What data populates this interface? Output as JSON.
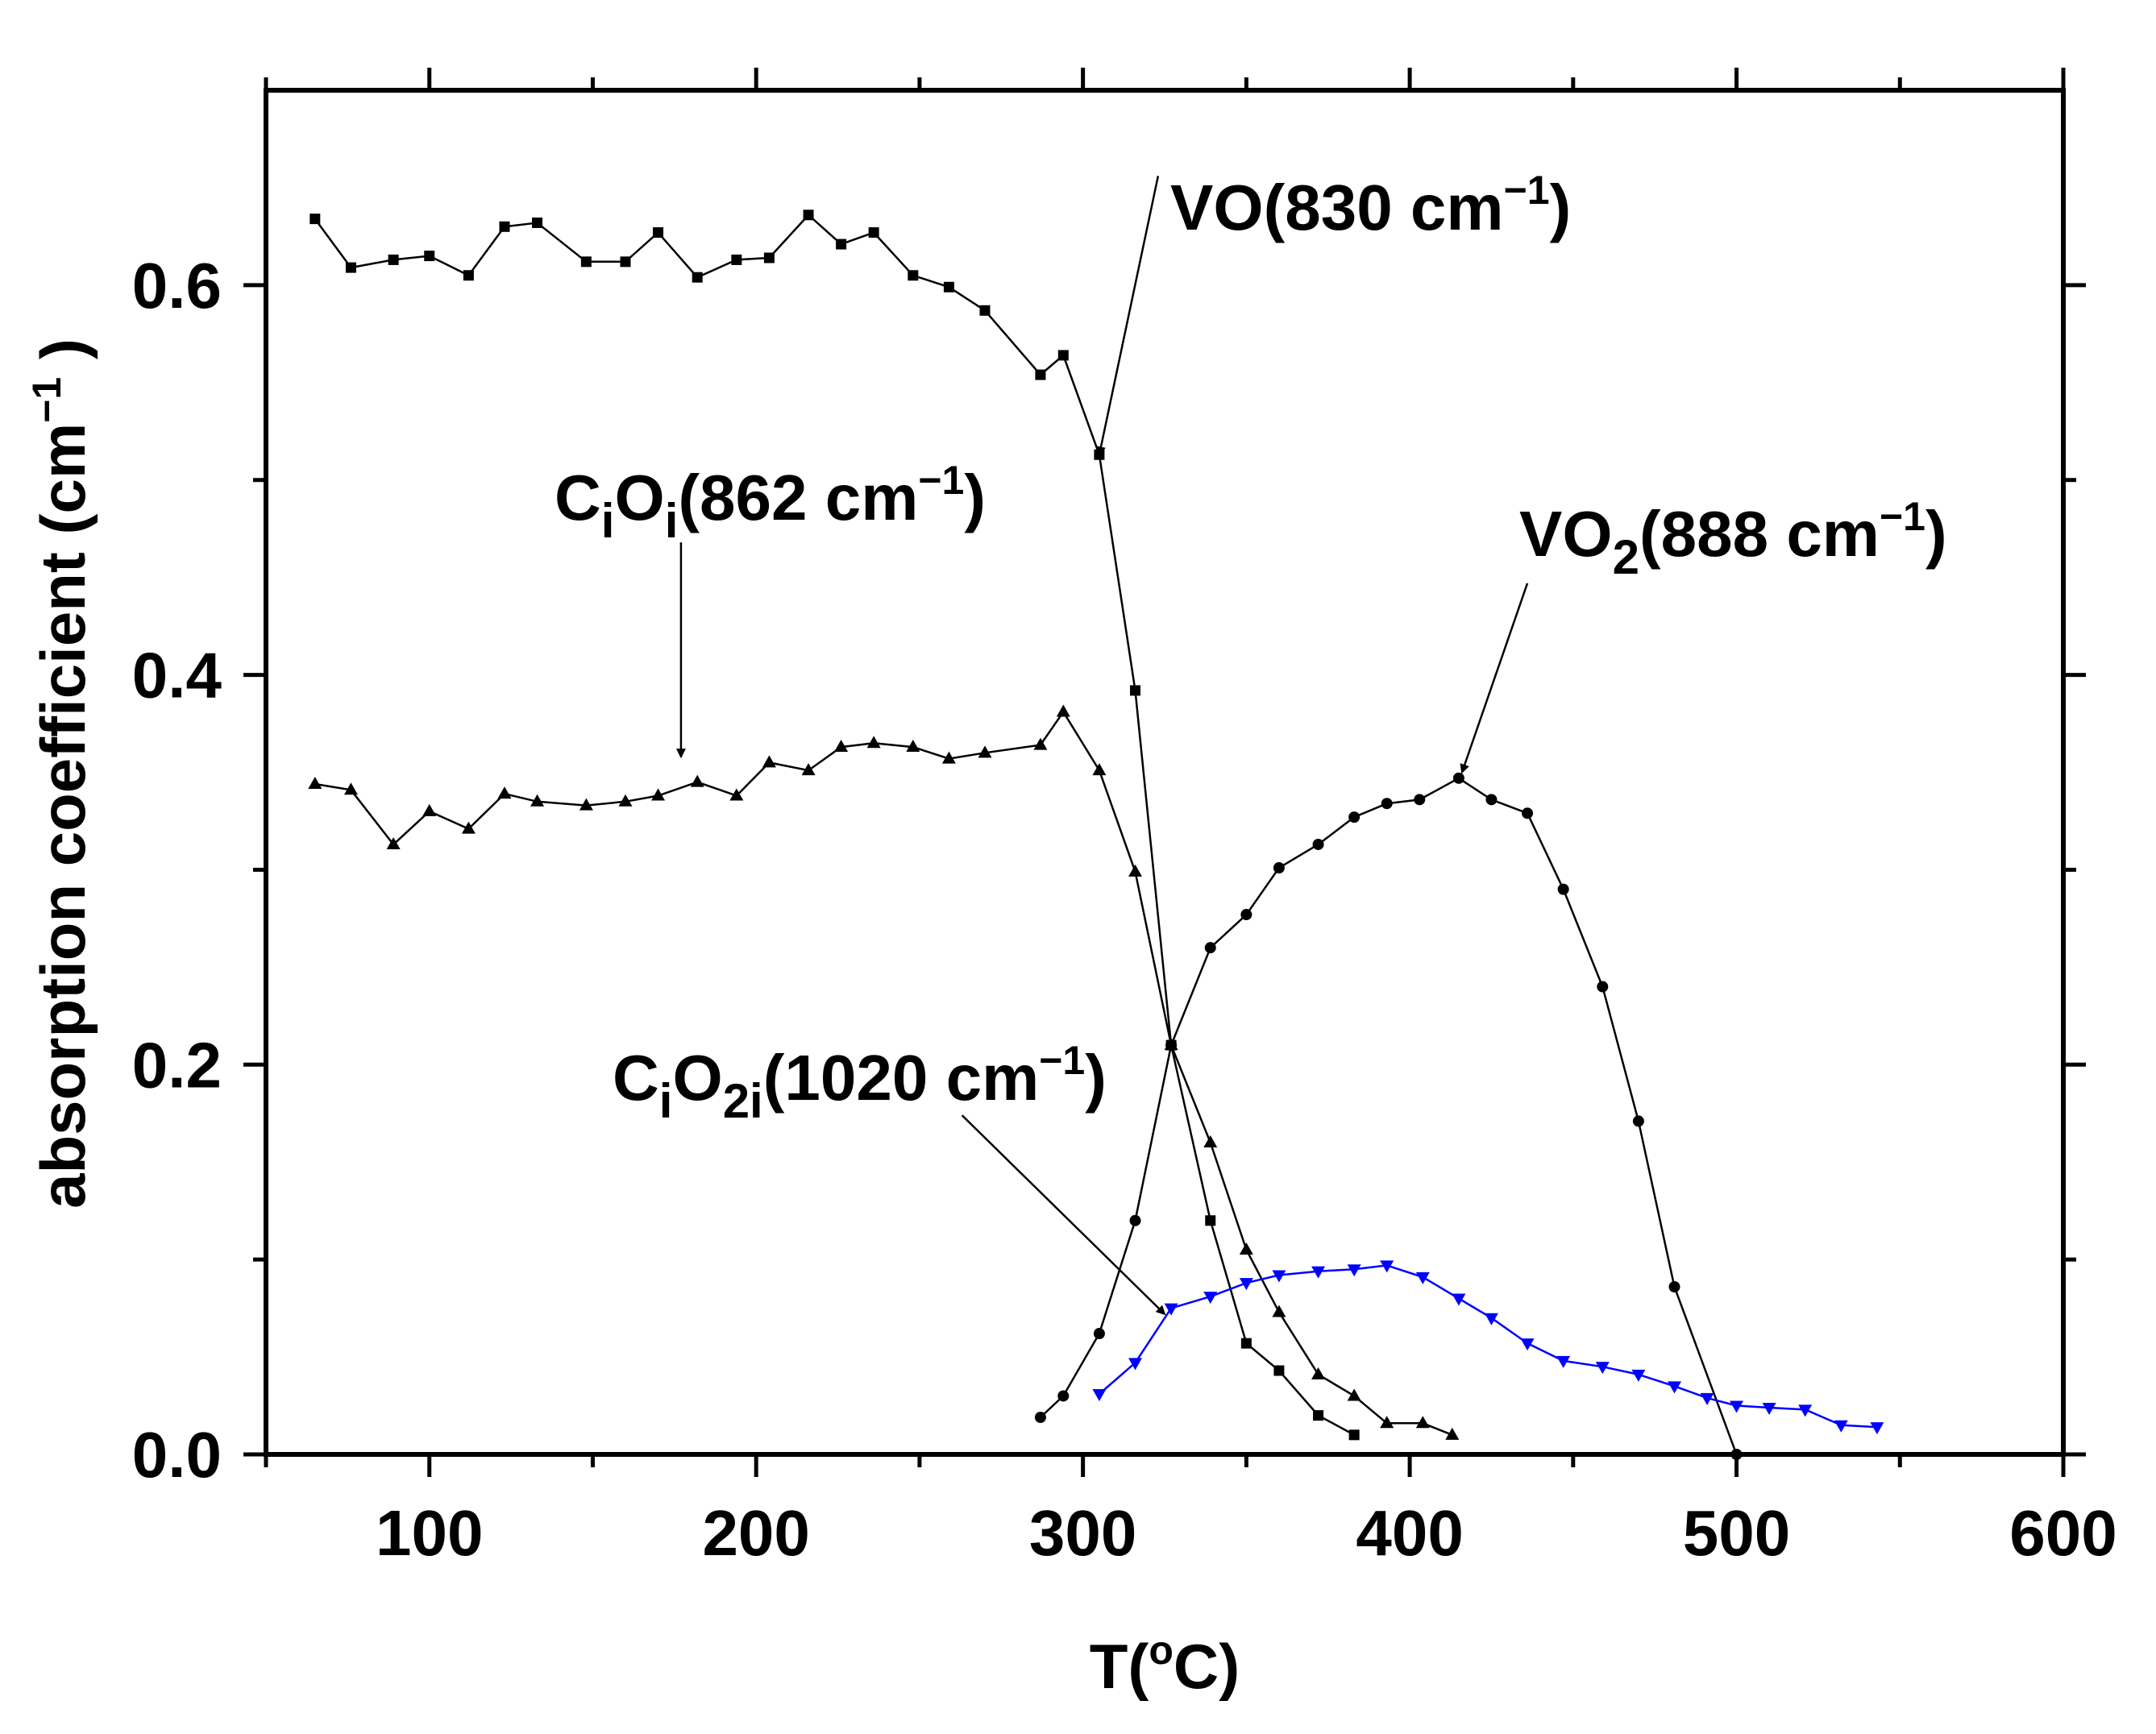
{
  "chart_data": {
    "type": "line",
    "title": "",
    "xlabel": {
      "pre": "T(",
      "sup": "o",
      "post": "C)"
    },
    "ylabel": {
      "pre": "absorption coefficient (cm",
      "sup": "−1",
      "post": " )"
    },
    "xlim": [
      50,
      600
    ],
    "ylim": [
      0,
      0.7
    ],
    "xticks": [
      100,
      200,
      300,
      400,
      500,
      600
    ],
    "xtick_labels": [
      "100",
      "200",
      "300",
      "400",
      "500",
      "600"
    ],
    "yticks": [
      0.0,
      0.2,
      0.4,
      0.6
    ],
    "ytick_labels": [
      "0.0",
      "0.2",
      "0.4",
      "0.6"
    ],
    "series": [
      {
        "name": "VO(830 cm⁻¹)",
        "marker": "square",
        "color": "#000000",
        "x": [
          65,
          76,
          89,
          100,
          112,
          123,
          133,
          148,
          160,
          170,
          182,
          194,
          204,
          216,
          226,
          236,
          248,
          259,
          270,
          287,
          294,
          305,
          316,
          327,
          339,
          350,
          360,
          372,
          383
        ],
        "y": [
          0.634,
          0.609,
          0.613,
          0.615,
          0.605,
          0.63,
          0.632,
          0.612,
          0.612,
          0.627,
          0.604,
          0.613,
          0.614,
          0.636,
          0.621,
          0.627,
          0.605,
          0.599,
          0.587,
          0.554,
          0.564,
          0.513,
          0.392,
          0.21,
          0.12,
          0.057,
          0.043,
          0.02,
          0.01
        ]
      },
      {
        "name": "CiOi(862 cm⁻¹)",
        "marker": "triangle-up",
        "color": "#000000",
        "x": [
          65,
          76,
          89,
          100,
          112,
          123,
          133,
          148,
          160,
          170,
          182,
          194,
          204,
          216,
          226,
          236,
          248,
          259,
          270,
          287,
          294,
          305,
          316,
          327,
          339,
          350,
          360,
          372,
          383,
          393,
          404,
          413
        ],
        "y": [
          0.344,
          0.341,
          0.313,
          0.33,
          0.321,
          0.339,
          0.335,
          0.333,
          0.335,
          0.338,
          0.345,
          0.338,
          0.355,
          0.351,
          0.363,
          0.365,
          0.363,
          0.357,
          0.36,
          0.364,
          0.381,
          0.351,
          0.299,
          0.21,
          0.16,
          0.105,
          0.073,
          0.041,
          0.03,
          0.016,
          0.016,
          0.01
        ]
      },
      {
        "name": "VO2(888 cm⁻¹)",
        "marker": "circle",
        "color": "#000000",
        "x": [
          287,
          294,
          305,
          316,
          327,
          339,
          350,
          360,
          372,
          383,
          393,
          403,
          415,
          425,
          436,
          447,
          459,
          470,
          481,
          500
        ],
        "y": [
          0.019,
          0.03,
          0.062,
          0.12,
          0.21,
          0.26,
          0.277,
          0.301,
          0.313,
          0.327,
          0.334,
          0.336,
          0.347,
          0.336,
          0.329,
          0.29,
          0.24,
          0.171,
          0.086,
          0.0
        ]
      },
      {
        "name": "CiO2i(1020 cm⁻¹)",
        "marker": "triangle-down",
        "color": "#0000ff",
        "x": [
          305,
          316,
          327,
          339,
          350,
          360,
          372,
          383,
          393,
          404,
          415,
          425,
          436,
          447,
          459,
          470,
          481,
          491,
          500,
          510,
          521,
          532,
          543
        ],
        "y": [
          0.031,
          0.047,
          0.075,
          0.081,
          0.088,
          0.092,
          0.094,
          0.095,
          0.097,
          0.091,
          0.08,
          0.07,
          0.057,
          0.048,
          0.045,
          0.041,
          0.035,
          0.029,
          0.025,
          0.024,
          0.023,
          0.015,
          0.014
        ]
      }
    ],
    "annotations": [
      {
        "id": "vo",
        "main": "VO(830 cm",
        "sup": "−1",
        "tail": ")",
        "arrow_from": [
          323,
          0.656
        ],
        "arrow_to": [
          305,
          0.513
        ]
      },
      {
        "id": "cioi",
        "pre": "C",
        "sub1": "i",
        "mid": "O",
        "sub2": "i",
        "main": "(862 cm",
        "sup": "−1",
        "tail": ")",
        "arrow_from": [
          177,
          0.468
        ],
        "arrow_to": [
          177,
          0.358
        ]
      },
      {
        "id": "vo2",
        "pre": "VO",
        "sub1": "2",
        "main": "(888 cm",
        "sup": "−1",
        "tail": ")",
        "arrow_from": [
          436,
          0.447
        ],
        "arrow_to": [
          416,
          0.35
        ]
      },
      {
        "id": "cio2i",
        "pre": "C",
        "sub1": "i",
        "mid": "O",
        "sub2": "2i",
        "main": "(1020 cm",
        "sup": "−1",
        "tail": ")",
        "arrow_from": [
          263,
          0.174
        ],
        "arrow_to": [
          325,
          0.072
        ]
      }
    ]
  }
}
